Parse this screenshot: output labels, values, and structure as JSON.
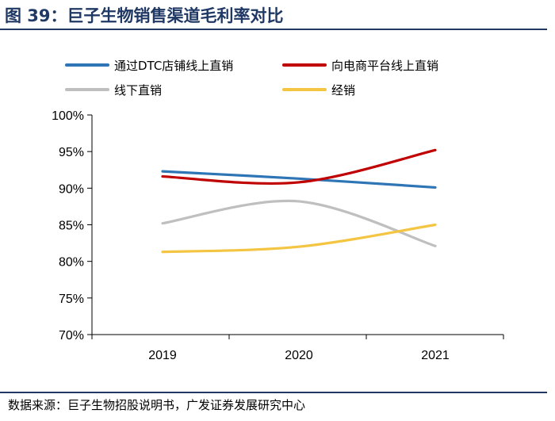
{
  "figure": {
    "title": "图 39：巨子生物销售渠道毛利率对比",
    "source": "数据来源：巨子生物招股说明书，广发证券发展研究中心"
  },
  "chart_data": {
    "type": "line",
    "x": [
      "2019",
      "2020",
      "2021"
    ],
    "ylim": [
      70,
      100
    ],
    "yticks": [
      70,
      75,
      80,
      85,
      90,
      95,
      100
    ],
    "ytick_labels": [
      "70%",
      "75%",
      "80%",
      "85%",
      "90%",
      "95%",
      "100%"
    ],
    "y_unit": "%",
    "grid": false,
    "smooth": true,
    "legend_position": "top",
    "series": [
      {
        "name": "通过DTC店铺线上直销",
        "color": "#2e75b6",
        "values": [
          92.3,
          91.3,
          90.1
        ]
      },
      {
        "name": "向电商平台线上直销",
        "color": "#c00000",
        "values": [
          91.6,
          90.8,
          95.2
        ]
      },
      {
        "name": "线下直销",
        "color": "#bfbfbf",
        "values": [
          85.2,
          88.2,
          82.1
        ]
      },
      {
        "name": "经销",
        "color": "#f4c542",
        "values": [
          81.3,
          82.0,
          85.0
        ]
      }
    ]
  }
}
